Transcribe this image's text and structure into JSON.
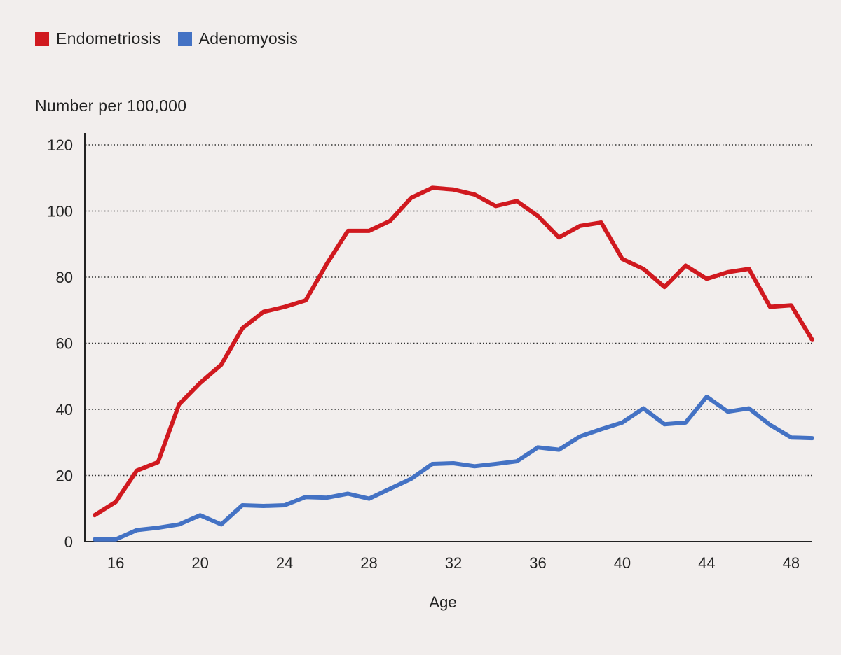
{
  "chart_data": {
    "type": "line",
    "title": "",
    "xlabel": "Age",
    "ylabel": "Number per 100,000",
    "xlim": [
      15,
      49
    ],
    "ylim": [
      0,
      120
    ],
    "xticks": [
      16,
      20,
      24,
      28,
      32,
      36,
      40,
      44,
      48
    ],
    "yticks": [
      0,
      20,
      40,
      60,
      80,
      100,
      120
    ],
    "grid": "horizontal-dotted",
    "legend_position": "top-left",
    "x": [
      15,
      16,
      17,
      18,
      19,
      20,
      21,
      22,
      23,
      24,
      25,
      26,
      27,
      28,
      29,
      30,
      31,
      32,
      33,
      34,
      35,
      36,
      37,
      38,
      39,
      40,
      41,
      42,
      43,
      44,
      45,
      46,
      47,
      48,
      49
    ],
    "series": [
      {
        "name": "Endometriosis",
        "color": "#d0191f",
        "values": [
          8,
          12,
          21.5,
          24,
          41.5,
          48,
          53.5,
          64.5,
          69.5,
          71,
          73,
          84,
          94,
          94,
          97,
          104,
          107,
          106.5,
          105,
          101.5,
          103,
          98.5,
          92,
          95.5,
          96.5,
          85.5,
          82.5,
          77,
          83.5,
          79.5,
          81.5,
          82.5,
          71,
          71.5,
          61
        ]
      },
      {
        "name": "Adenomyosis",
        "color": "#4472c4",
        "values": [
          0.7,
          0.7,
          3.5,
          4.2,
          5.2,
          8,
          5.2,
          11,
          10.8,
          11,
          13.5,
          13.3,
          14.5,
          13,
          16,
          19,
          23.5,
          23.7,
          22.8,
          23.5,
          24.3,
          28.5,
          27.8,
          31.8,
          34,
          36,
          40.3,
          35.5,
          36,
          43.8,
          39.3,
          40.3,
          35.3,
          31.5,
          31.3
        ]
      }
    ]
  }
}
